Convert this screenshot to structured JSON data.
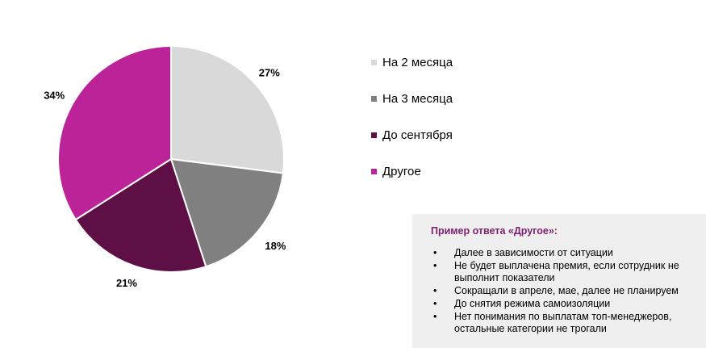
{
  "chart_data": {
    "type": "pie",
    "title": "",
    "slices": [
      {
        "label": "На 2 месяца",
        "value": 27,
        "display": "27%",
        "color": "#d9d9d9"
      },
      {
        "label": "На 3 месяца",
        "value": 18,
        "display": "18%",
        "color": "#808080"
      },
      {
        "label": "До сентября",
        "value": 21,
        "display": "21%",
        "color": "#5e0f46"
      },
      {
        "label": "Другое",
        "value": 34,
        "display": "34%",
        "color": "#bd2399"
      }
    ],
    "legend_position": "right"
  },
  "legend": {
    "items": [
      {
        "label": "На 2 месяца",
        "color": "#d9d9d9"
      },
      {
        "label": "На 3 месяца",
        "color": "#808080"
      },
      {
        "label": "До сентября",
        "color": "#5e0f46"
      },
      {
        "label": "Другое",
        "color": "#bd2399"
      }
    ]
  },
  "note": {
    "title": "Пример ответа «Другое»:",
    "title_color": "#7d1f6e",
    "bullet": "•",
    "items": [
      "Далее в зависимости от ситуации",
      "Не будет выплачена премия, если сотрудник не выполнит показатели",
      "Сокращали в апреле, мае, далее не планируем",
      "До снятия режима самоизоляции",
      "Нет понимания по выплатам топ-менеджеров, остальные категории не трогали"
    ]
  }
}
